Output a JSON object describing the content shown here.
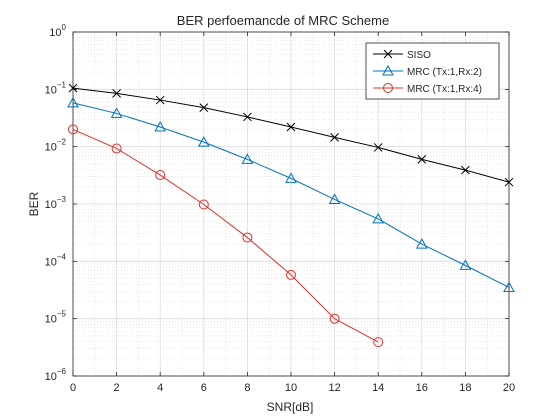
{
  "chart_data": {
    "type": "line",
    "title": "BER perfoemancde of MRC Scheme",
    "xlabel": "SNR[dB]",
    "ylabel": "BER",
    "xlim": [
      0,
      20
    ],
    "ylim": [
      1e-06,
      1
    ],
    "y_scale": "log",
    "x_ticks": [
      0,
      2,
      4,
      6,
      8,
      10,
      12,
      14,
      16,
      18,
      20
    ],
    "y_tick_exponents": [
      0,
      -1,
      -2,
      -3,
      -4,
      -5,
      -6
    ],
    "grid": true,
    "minor_grid": true,
    "legend_position": "top-right",
    "series": [
      {
        "name": "SISO",
        "color": "#000000",
        "marker": "x",
        "x": [
          0,
          2,
          4,
          6,
          8,
          10,
          12,
          14,
          16,
          18,
          20
        ],
        "y": [
          0.105,
          0.085,
          0.065,
          0.048,
          0.033,
          0.022,
          0.0145,
          0.0097,
          0.006,
          0.0039,
          0.0024
        ]
      },
      {
        "name": "MRC (Tx:1,Rx:2)",
        "color": "#0072BD",
        "marker": "triangle",
        "x": [
          0,
          2,
          4,
          6,
          8,
          10,
          12,
          14,
          16,
          18,
          20
        ],
        "y": [
          0.058,
          0.038,
          0.022,
          0.012,
          0.006,
          0.0028,
          0.0012,
          0.00055,
          0.0002,
          8.5e-05,
          3.5e-05
        ]
      },
      {
        "name": "MRC (Tx:1,Rx:4)",
        "color": "#E0302A",
        "marker": "circle",
        "x": [
          0,
          2,
          4,
          6,
          8,
          10,
          12,
          14
        ],
        "y": [
          0.02,
          0.0093,
          0.0032,
          0.00098,
          0.00026,
          5.8e-05,
          1e-05,
          3.9e-06
        ]
      }
    ]
  }
}
